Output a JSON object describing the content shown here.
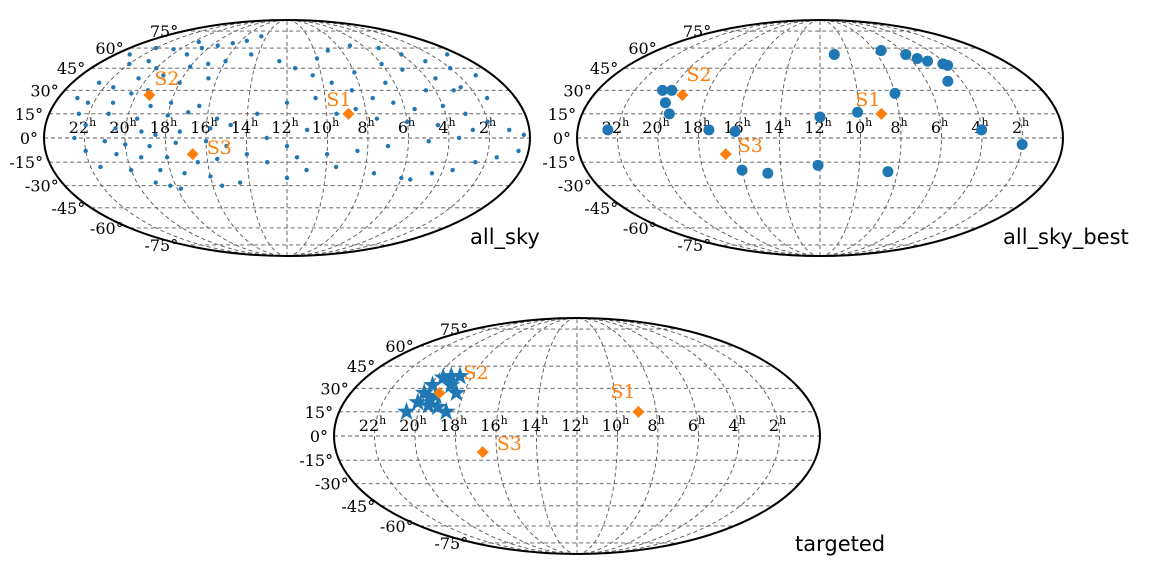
{
  "colors": {
    "events": "#1f77b4",
    "sources": "#ff7f0e",
    "grid": "#555555",
    "outline": "#000000"
  },
  "chart_data": [
    {
      "type": "scatter",
      "projection": "mollweide",
      "title": "all_sky",
      "marker": "small-dot",
      "grid": true,
      "ra_ticks": [
        "22",
        "20",
        "18",
        "16",
        "14",
        "12",
        "10",
        "8",
        "6",
        "4",
        "2"
      ],
      "ra_tick_unit": "h",
      "dec_ticks": [
        "75°",
        "60°",
        "45°",
        "30°",
        "15°",
        "0°",
        "-15°",
        "-30°",
        "-45°",
        "-60°",
        "-75°"
      ],
      "sources": [
        {
          "name": "S1",
          "ra_h": 8.9,
          "dec": 15
        },
        {
          "name": "S2",
          "ra_h": 19.3,
          "dec": 27
        },
        {
          "name": "S3",
          "ra_h": 16.7,
          "dec": -10
        }
      ],
      "events": [
        [
          19.5,
          65
        ],
        [
          20.5,
          59
        ],
        [
          18.5,
          60
        ],
        [
          17.5,
          62
        ],
        [
          16.5,
          64
        ],
        [
          15.5,
          66
        ],
        [
          14.5,
          70
        ],
        [
          19.0,
          55
        ],
        [
          21.0,
          50
        ],
        [
          22.0,
          48
        ],
        [
          20.0,
          45
        ],
        [
          18.0,
          46
        ],
        [
          17.0,
          48
        ],
        [
          16.0,
          50
        ],
        [
          14.5,
          55
        ],
        [
          19.2,
          40
        ],
        [
          20.5,
          38
        ],
        [
          22.5,
          35
        ],
        [
          21.5,
          32
        ],
        [
          18.0,
          35
        ],
        [
          16.5,
          38
        ],
        [
          19.5,
          30
        ],
        [
          20.3,
          28
        ],
        [
          22.3,
          22
        ],
        [
          23.0,
          25
        ],
        [
          21.0,
          22
        ],
        [
          19.0,
          20
        ],
        [
          18.0,
          22
        ],
        [
          16.5,
          20
        ],
        [
          22.5,
          15
        ],
        [
          21.0,
          15
        ],
        [
          19.5,
          12
        ],
        [
          18.0,
          14
        ],
        [
          17.0,
          16
        ],
        [
          15.5,
          12
        ],
        [
          22.0,
          8
        ],
        [
          20.5,
          6
        ],
        [
          19.2,
          4
        ],
        [
          18.5,
          2
        ],
        [
          17.3,
          4
        ],
        [
          15.8,
          6
        ],
        [
          22.5,
          0
        ],
        [
          21.0,
          -2
        ],
        [
          20.0,
          -4
        ],
        [
          18.8,
          -5
        ],
        [
          17.5,
          -3
        ],
        [
          16.0,
          -2
        ],
        [
          22.0,
          -8
        ],
        [
          20.5,
          -10
        ],
        [
          19.3,
          -12
        ],
        [
          18.0,
          -12
        ],
        [
          16.5,
          -15
        ],
        [
          15.5,
          -13
        ],
        [
          21.5,
          -18
        ],
        [
          20.0,
          -20
        ],
        [
          18.5,
          -20
        ],
        [
          17.3,
          -22
        ],
        [
          16.0,
          -24
        ],
        [
          19.0,
          -28
        ],
        [
          18.3,
          -30
        ],
        [
          17.8,
          -32
        ],
        [
          15.5,
          -30
        ],
        [
          14.5,
          -28
        ],
        [
          12.0,
          -25
        ],
        [
          11.0,
          -20
        ],
        [
          9.5,
          -18
        ],
        [
          7.5,
          -22
        ],
        [
          6.0,
          -25
        ],
        [
          5.5,
          -26
        ],
        [
          4.5,
          -22
        ],
        [
          3.5,
          -20
        ],
        [
          2.5,
          -15
        ],
        [
          1.5,
          -12
        ],
        [
          0.5,
          -8
        ],
        [
          0.3,
          2
        ],
        [
          1.0,
          5
        ],
        [
          2.0,
          10
        ],
        [
          3.0,
          15
        ],
        [
          4.0,
          20
        ],
        [
          5.5,
          18
        ],
        [
          6.5,
          22
        ],
        [
          7.5,
          25
        ],
        [
          8.5,
          30
        ],
        [
          9.5,
          35
        ],
        [
          10.5,
          40
        ],
        [
          11.5,
          45
        ],
        [
          12.5,
          50
        ],
        [
          9.0,
          58
        ],
        [
          7.0,
          62
        ],
        [
          5.0,
          60
        ],
        [
          4.0,
          55
        ],
        [
          3.0,
          50
        ],
        [
          2.0,
          45
        ],
        [
          1.0,
          40
        ],
        [
          6.0,
          48
        ],
        [
          5.0,
          44
        ],
        [
          3.5,
          38
        ],
        [
          2.5,
          32
        ],
        [
          6.5,
          35
        ],
        [
          8.0,
          42
        ],
        [
          10.0,
          52
        ],
        [
          9.5,
          15
        ],
        [
          11.0,
          5
        ],
        [
          13.0,
          0
        ],
        [
          12.0,
          -5
        ],
        [
          10.0,
          -10
        ],
        [
          8.5,
          -8
        ],
        [
          7.0,
          -5
        ],
        [
          5.0,
          -2
        ],
        [
          3.5,
          0
        ],
        [
          2.8,
          5
        ],
        [
          4.5,
          8
        ],
        [
          6.0,
          10
        ],
        [
          7.5,
          12
        ],
        [
          8.5,
          18
        ],
        [
          10.5,
          25
        ],
        [
          12.0,
          22
        ],
        [
          13.5,
          15
        ],
        [
          14.8,
          8
        ],
        [
          15.0,
          -5
        ],
        [
          14.0,
          -10
        ],
        [
          13.0,
          -15
        ],
        [
          11.5,
          -12
        ],
        [
          23.0,
          55
        ],
        [
          22.0,
          60
        ],
        [
          0.8,
          55
        ],
        [
          1.5,
          25
        ],
        [
          3.0,
          30
        ],
        [
          4.5,
          30
        ]
      ]
    },
    {
      "type": "scatter",
      "projection": "mollweide",
      "title": "all_sky_best",
      "marker": "large-dot",
      "grid": true,
      "ra_ticks": [
        "22",
        "20",
        "18",
        "16",
        "14",
        "12",
        "10",
        "8",
        "6",
        "4",
        "2"
      ],
      "ra_tick_unit": "h",
      "dec_ticks": [
        "75°",
        "60°",
        "45°",
        "30°",
        "15°",
        "0°",
        "-15°",
        "-30°",
        "-45°",
        "-60°",
        "-75°"
      ],
      "sources": [
        {
          "name": "S1",
          "ra_h": 8.9,
          "dec": 15
        },
        {
          "name": "S2",
          "ra_h": 19.3,
          "dec": 27
        },
        {
          "name": "S3",
          "ra_h": 16.7,
          "dec": -10
        }
      ],
      "events": [
        [
          22.5,
          5
        ],
        [
          20.5,
          30
        ],
        [
          20.0,
          30
        ],
        [
          20.0,
          22
        ],
        [
          19.6,
          15
        ],
        [
          17.5,
          5
        ],
        [
          16.2,
          4
        ],
        [
          16.0,
          -20
        ],
        [
          14.7,
          -22
        ],
        [
          12.1,
          -17
        ],
        [
          12.0,
          13
        ],
        [
          10.1,
          16
        ],
        [
          8.5,
          -21
        ],
        [
          8.0,
          28
        ],
        [
          11.0,
          55
        ],
        [
          7.5,
          58
        ],
        [
          6.0,
          55
        ],
        [
          5.5,
          52
        ],
        [
          5.0,
          50
        ],
        [
          4.2,
          48
        ],
        [
          4.0,
          47
        ],
        [
          4.8,
          36
        ],
        [
          4.0,
          5
        ],
        [
          2.0,
          -4
        ]
      ]
    },
    {
      "type": "scatter",
      "projection": "mollweide",
      "title": "targeted",
      "marker": "star",
      "grid": true,
      "ra_ticks": [
        "22",
        "20",
        "18",
        "16",
        "14",
        "12",
        "10",
        "8",
        "6",
        "4",
        "2"
      ],
      "ra_tick_unit": "h",
      "dec_ticks": [
        "75°",
        "60°",
        "45°",
        "30°",
        "15°",
        "0°",
        "-15°",
        "-30°",
        "-45°",
        "-60°",
        "-75°"
      ],
      "sources": [
        {
          "name": "S1",
          "ra_h": 8.9,
          "dec": 15
        },
        {
          "name": "S2",
          "ra_h": 19.3,
          "dec": 27
        },
        {
          "name": "S3",
          "ra_h": 16.7,
          "dec": -10
        }
      ],
      "events": [
        [
          19.6,
          37
        ],
        [
          19.2,
          38
        ],
        [
          18.7,
          38
        ],
        [
          19.9,
          32
        ],
        [
          18.9,
          32
        ],
        [
          18.4,
          27
        ],
        [
          19.7,
          24
        ],
        [
          20.2,
          21
        ],
        [
          20.6,
          15
        ],
        [
          19.6,
          19
        ],
        [
          19.1,
          18
        ],
        [
          18.6,
          15
        ],
        [
          19.4,
          25
        ],
        [
          20.1,
          27
        ]
      ]
    }
  ]
}
